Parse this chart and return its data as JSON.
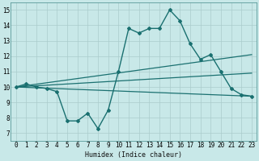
{
  "xlabel": "Humidex (Indice chaleur)",
  "bg_color": "#c8e8e8",
  "grid_color": "#aacccc",
  "line_color": "#1a7070",
  "xlim": [
    -0.5,
    23.5
  ],
  "ylim": [
    6.5,
    15.5
  ],
  "xticks": [
    0,
    1,
    2,
    3,
    4,
    5,
    6,
    7,
    8,
    9,
    10,
    11,
    12,
    13,
    14,
    15,
    16,
    17,
    18,
    19,
    20,
    21,
    22,
    23
  ],
  "yticks": [
    7,
    8,
    9,
    10,
    11,
    12,
    13,
    14,
    15
  ],
  "line1": {
    "x": [
      0,
      1,
      2,
      3,
      4,
      5,
      6,
      7,
      8,
      9,
      10,
      11,
      12,
      13,
      14,
      15,
      16,
      17,
      18,
      19,
      20,
      21,
      22,
      23
    ],
    "y": [
      10.0,
      10.2,
      10.0,
      9.9,
      9.7,
      7.8,
      7.8,
      8.3,
      7.3,
      8.5,
      11.0,
      13.8,
      13.5,
      13.8,
      13.8,
      15.0,
      14.3,
      12.8,
      11.8,
      12.1,
      11.0,
      9.9,
      9.5,
      9.4
    ],
    "linewidth": 1.0
  },
  "line2": {
    "x": [
      0,
      23
    ],
    "y": [
      10.0,
      12.1
    ],
    "linewidth": 0.9
  },
  "line3": {
    "x": [
      0,
      23
    ],
    "y": [
      10.0,
      10.9
    ],
    "linewidth": 0.9
  },
  "line4": {
    "x": [
      0,
      23
    ],
    "y": [
      10.0,
      9.4
    ],
    "linewidth": 0.9
  }
}
